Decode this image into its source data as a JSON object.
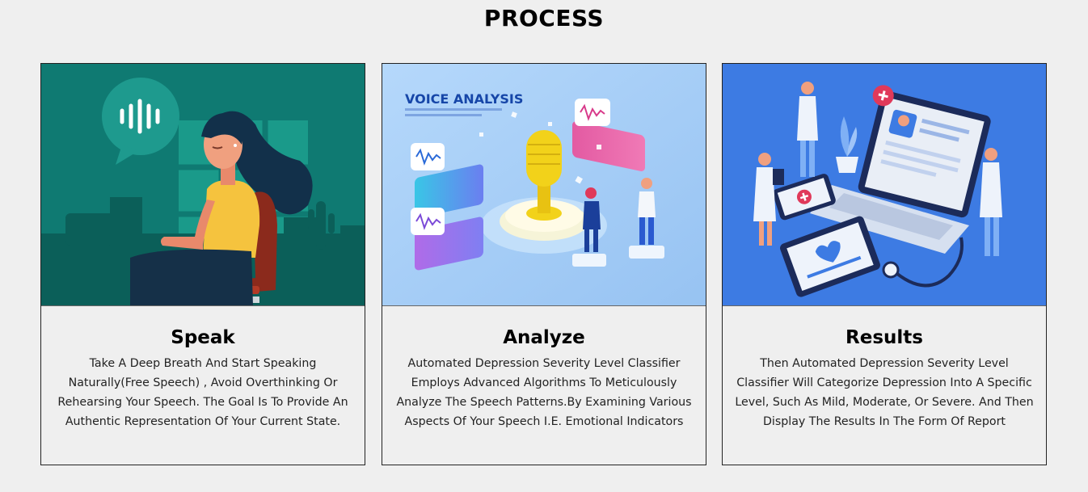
{
  "section": {
    "title": "PROCESS"
  },
  "cards": [
    {
      "title": "Speak",
      "text": "Take A Deep Breath And Start Speaking Naturally(Free Speech) , Avoid Overthinking Or Rehearsing Your Speech. The Goal Is To Provide An Authentic Representation Of Your Current State.",
      "illustration": "woman-speaking-illustration",
      "colors": {
        "bg": "#0f7a72",
        "dark": "#0b5f59",
        "accent": "#f4c542"
      }
    },
    {
      "title": "Analyze",
      "text": "Automated Depression Severity Level Classifier Employs Advanced Algorithms To Meticulously Analyze The Speech Patterns.By Examining Various Aspects Of Your Speech I.E. Emotional Indicators",
      "illustration": "voice-analysis-illustration",
      "image_heading": "VOICE ANALYSIS",
      "colors": {
        "bg": "#a9cff5",
        "mic": "#f2d21a",
        "heading": "#1646a8"
      }
    },
    {
      "title": "Results",
      "text": "Then Automated Depression Severity Level Classifier Will Categorize Depression Into A Specific Level, Such As Mild, Moderate, Or Severe. And Then Display The Results In The Form Of Report",
      "illustration": "doctors-laptop-illustration",
      "colors": {
        "bg": "#3d7be3",
        "laptop": "#e9eef6",
        "red": "#e0395a"
      }
    }
  ]
}
